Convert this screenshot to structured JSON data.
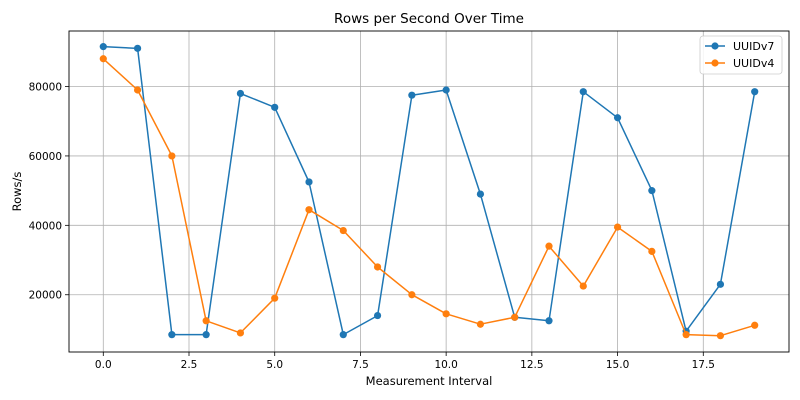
{
  "chart_data": {
    "type": "line",
    "title": "Rows per Second Over Time",
    "xlabel": "Measurement Interval",
    "ylabel": "Rows/s",
    "xlim": [
      -1.0,
      20.0
    ],
    "ylim": [
      3500,
      96000
    ],
    "xticks": [
      0.0,
      2.5,
      5.0,
      7.5,
      10.0,
      12.5,
      15.0,
      17.5
    ],
    "xtick_labels": [
      "0.0",
      "2.5",
      "5.0",
      "7.5",
      "10.0",
      "12.5",
      "15.0",
      "17.5"
    ],
    "yticks": [
      20000,
      40000,
      60000,
      80000
    ],
    "ytick_labels": [
      "20000",
      "40000",
      "60000",
      "80000"
    ],
    "grid": true,
    "legend_position": "top-right",
    "x": [
      0,
      1,
      2,
      3,
      4,
      5,
      6,
      7,
      8,
      9,
      10,
      11,
      12,
      13,
      14,
      15,
      16,
      17,
      18,
      19
    ],
    "series": [
      {
        "name": "UUIDv7",
        "color": "#1f77b4",
        "values": [
          91500,
          91000,
          8500,
          8500,
          78000,
          74000,
          52500,
          8500,
          14000,
          77500,
          79000,
          49000,
          13500,
          12500,
          78500,
          71000,
          50000,
          9500,
          23000,
          78500
        ]
      },
      {
        "name": "UUIDv4",
        "color": "#ff7f0e",
        "values": [
          88000,
          79000,
          60000,
          12500,
          9000,
          19000,
          44500,
          38500,
          28000,
          20000,
          14500,
          11500,
          13500,
          34000,
          22500,
          39500,
          32500,
          8500,
          8200,
          11200
        ]
      }
    ]
  }
}
